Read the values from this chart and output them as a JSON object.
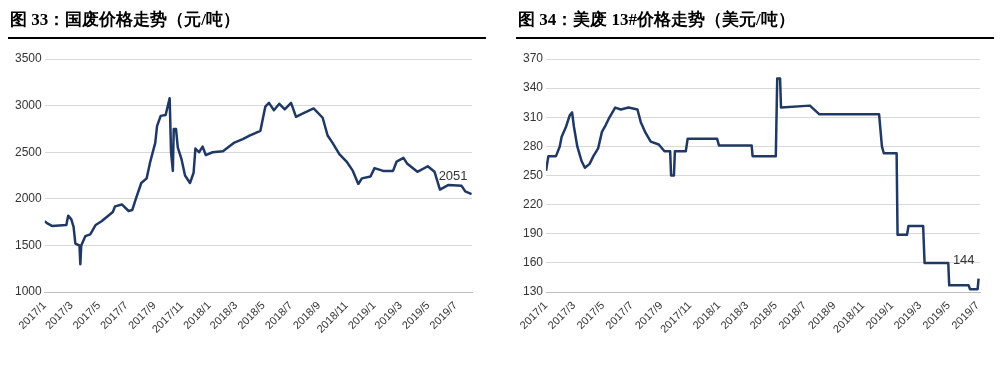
{
  "chart_data": [
    {
      "type": "line",
      "title": "图 33：国废价格走势（元/吨）",
      "series": [
        {
          "color": "#1f3864",
          "x": [
            "2017-01-01",
            "2017-01-06",
            "2017-01-17",
            "2017-02-18",
            "2017-02-22",
            "2017-03-01",
            "2017-03-06",
            "2017-03-10",
            "2017-03-19",
            "2017-03-21",
            "2017-03-23",
            "2017-04-01",
            "2017-04-12",
            "2017-04-24",
            "2017-05-07",
            "2017-06-01",
            "2017-06-06",
            "2017-06-21",
            "2017-07-06",
            "2017-07-14",
            "2017-07-22",
            "2017-08-03",
            "2017-08-15",
            "2017-08-23",
            "2017-09-03",
            "2017-09-07",
            "2017-09-15",
            "2017-09-26",
            "2017-10-05",
            "2017-10-08",
            "2017-10-12",
            "2017-10-14",
            "2017-10-19",
            "2017-10-23",
            "2017-10-31",
            "2017-11-08",
            "2017-11-19",
            "2017-11-27",
            "2017-12-01",
            "2017-12-09",
            "2017-12-17",
            "2017-12-24",
            "2018-01-08",
            "2018-01-31",
            "2018-02-24",
            "2018-03-16",
            "2018-04-01",
            "2018-04-24",
            "2018-05-05",
            "2018-05-13",
            "2018-05-24",
            "2018-06-05",
            "2018-06-17",
            "2018-07-01",
            "2018-07-12",
            "2018-07-24",
            "2018-08-20",
            "2018-09-09",
            "2018-09-20",
            "2018-10-01",
            "2018-10-16",
            "2018-11-01",
            "2018-11-15",
            "2018-11-27",
            "2018-12-05",
            "2018-12-24",
            "2019-01-02",
            "2019-01-21",
            "2019-02-12",
            "2019-02-20",
            "2019-03-07",
            "2019-03-15",
            "2019-04-07",
            "2019-04-30",
            "2019-05-15",
            "2019-05-27",
            "2019-06-15",
            "2019-07-14",
            "2019-07-22",
            "2019-08-05"
          ],
          "values": [
            1760,
            1740,
            1710,
            1720,
            1820,
            1780,
            1700,
            1520,
            1500,
            1300,
            1500,
            1600,
            1620,
            1720,
            1760,
            1860,
            1920,
            1940,
            1870,
            1880,
            2000,
            2170,
            2220,
            2400,
            2600,
            2780,
            2890,
            2900,
            3080,
            2500,
            2300,
            2750,
            2750,
            2550,
            2430,
            2250,
            2170,
            2280,
            2540,
            2500,
            2560,
            2470,
            2500,
            2510,
            2600,
            2640,
            2680,
            2730,
            2990,
            3030,
            2950,
            3020,
            2960,
            3030,
            2880,
            2910,
            2970,
            2870,
            2680,
            2600,
            2480,
            2400,
            2300,
            2160,
            2220,
            2240,
            2330,
            2300,
            2300,
            2400,
            2440,
            2380,
            2290,
            2350,
            2290,
            2100,
            2150,
            2140,
            2080,
            2051
          ]
        }
      ],
      "xlim": [
        "2017-01-01",
        "2019-08-06"
      ],
      "xticks": [
        {
          "value": "2017-01",
          "label": "2017/1"
        },
        {
          "value": "2017-03",
          "label": "2017/3"
        },
        {
          "value": "2017-05",
          "label": "2017/5"
        },
        {
          "value": "2017-07",
          "label": "2017/7"
        },
        {
          "value": "2017-09",
          "label": "2017/9"
        },
        {
          "value": "2017-11",
          "label": "2017/11"
        },
        {
          "value": "2018-01",
          "label": "2018/1"
        },
        {
          "value": "2018-03",
          "label": "2018/3"
        },
        {
          "value": "2018-05",
          "label": "2018/5"
        },
        {
          "value": "2018-07",
          "label": "2018/7"
        },
        {
          "value": "2018-09",
          "label": "2018/9"
        },
        {
          "value": "2018-11",
          "label": "2018/11"
        },
        {
          "value": "2019-01",
          "label": "2019/1"
        },
        {
          "value": "2019-03",
          "label": "2019/3"
        },
        {
          "value": "2019-05",
          "label": "2019/5"
        },
        {
          "value": "2019-07",
          "label": "2019/7"
        }
      ],
      "ylim": [
        1000,
        3500
      ],
      "yticks": [
        1000,
        1500,
        2000,
        2500,
        3000,
        3500
      ],
      "grid": "y",
      "legend": false,
      "marker": "none",
      "line_style": "solid",
      "annotations": [
        {
          "text": "2051",
          "x": "2019-08-05",
          "y": 2051
        }
      ]
    },
    {
      "type": "line",
      "title": "图 34：美废 13#价格走势（美元/吨）",
      "series": [
        {
          "color": "#1f3864",
          "x": [
            "2017-01-01",
            "2017-01-06",
            "2017-01-22",
            "2017-01-30",
            "2017-02-03",
            "2017-02-12",
            "2017-02-20",
            "2017-02-25",
            "2017-03-01",
            "2017-03-08",
            "2017-03-17",
            "2017-03-24",
            "2017-04-03",
            "2017-04-11",
            "2017-04-21",
            "2017-04-29",
            "2017-05-07",
            "2017-05-15",
            "2017-05-27",
            "2017-06-08",
            "2017-06-24",
            "2017-07-13",
            "2017-07-20",
            "2017-07-29",
            "2017-08-10",
            "2017-08-27",
            "2017-09-08",
            "2017-09-20",
            "2017-09-22",
            "2017-09-28",
            "2017-09-30",
            "2017-10-23",
            "2017-10-27",
            "2017-12-28",
            "2018-01-01",
            "2018-03-11",
            "2018-03-13",
            "2018-05-01",
            "2018-05-04",
            "2018-05-10",
            "2018-05-12",
            "2018-07-12",
            "2018-08-01",
            "2018-12-05",
            "2018-12-11",
            "2018-12-15",
            "2019-01-11",
            "2019-01-13",
            "2019-02-02",
            "2019-02-05",
            "2019-03-08",
            "2019-03-11",
            "2019-04-30",
            "2019-05-02",
            "2019-06-12",
            "2019-06-15",
            "2019-07-01",
            "2019-07-03"
          ],
          "values": [
            255,
            270,
            270,
            280,
            290,
            300,
            312,
            315,
            300,
            280,
            265,
            258,
            262,
            270,
            278,
            295,
            302,
            310,
            320,
            318,
            320,
            318,
            305,
            295,
            285,
            282,
            275,
            275,
            250,
            250,
            275,
            275,
            288,
            288,
            281,
            281,
            270,
            270,
            350,
            350,
            320,
            322,
            313,
            313,
            280,
            273,
            273,
            189,
            189,
            198,
            198,
            160,
            160,
            137,
            137,
            133,
            133,
            144
          ]
        }
      ],
      "xlim": [
        "2017-01-01",
        "2019-07-06"
      ],
      "xticks": [
        {
          "value": "2017-01",
          "label": "2017/1"
        },
        {
          "value": "2017-03",
          "label": "2017/3"
        },
        {
          "value": "2017-05",
          "label": "2017/5"
        },
        {
          "value": "2017-07",
          "label": "2017/7"
        },
        {
          "value": "2017-09",
          "label": "2017/9"
        },
        {
          "value": "2017-11",
          "label": "2017/11"
        },
        {
          "value": "2018-01",
          "label": "2018/1"
        },
        {
          "value": "2018-03",
          "label": "2018/3"
        },
        {
          "value": "2018-05",
          "label": "2018/5"
        },
        {
          "value": "2018-07",
          "label": "2018/7"
        },
        {
          "value": "2018-09",
          "label": "2018/9"
        },
        {
          "value": "2018-11",
          "label": "2018/11"
        },
        {
          "value": "2019-01",
          "label": "2019/1"
        },
        {
          "value": "2019-03",
          "label": "2019/3"
        },
        {
          "value": "2019-05",
          "label": "2019/5"
        },
        {
          "value": "2019-07",
          "label": "2019/7"
        }
      ],
      "ylim": [
        130,
        370
      ],
      "yticks": [
        130,
        160,
        190,
        220,
        250,
        280,
        310,
        340,
        370
      ],
      "grid": "y",
      "legend": false,
      "marker": "none",
      "line_style": "solid",
      "annotations": [
        {
          "text": "144",
          "x": "2019-07-03",
          "y": 144
        }
      ]
    }
  ]
}
